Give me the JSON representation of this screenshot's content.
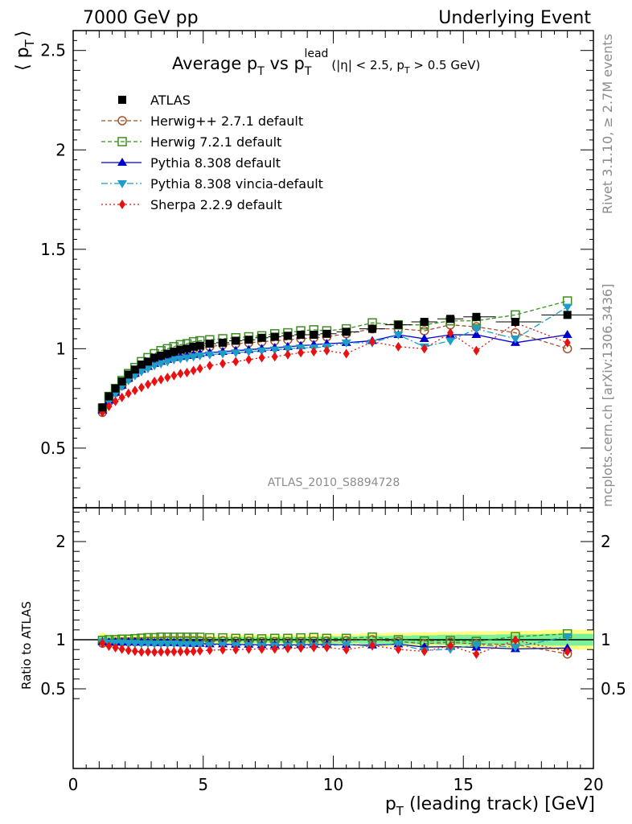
{
  "header": {
    "left": "7000 GeV pp",
    "right": "Underlying Event"
  },
  "side_text": {
    "rivet": "Rivet 3.1.10, ≥ 2.7M events",
    "mcplots": "mcplots.cern.ch [arXiv:1306.3436]"
  },
  "colors": {
    "atlas": "#000000",
    "herwigpp": "#a0522d",
    "herwig7": "#3a8f1f",
    "pythia_default": "#0000cc",
    "pythia_vincia": "#1e9ec7",
    "sherpa": "#e81010",
    "band_inner": "#7cf09a",
    "band_outer": "#ffff80"
  },
  "chart_data": [
    {
      "type": "line",
      "title": "Average p_T vs p_T^lead (|η| < 2.5, p_T > 0.5 GeV)",
      "title_parts": {
        "main": "Average p",
        "sub1": "T",
        "vs": " vs p",
        "sup": "lead",
        "sub2": "T",
        "cut1": "(|η| < 2.5, p",
        "cut_sub": "T",
        "cut2": " > 0.5 GeV)"
      },
      "ylabel": "⟨ p_T ⟩",
      "ylabel_parts": {
        "open": "⟨ p",
        "sub": "T",
        "close": "⟩"
      },
      "watermark": "ATLAS_2010_S8894728",
      "xlim": [
        0,
        20
      ],
      "ylim": [
        0.2,
        2.6
      ],
      "yticks": [
        "0.5",
        "1",
        "1.5",
        "2",
        "2.5"
      ],
      "legend_position": "top-left",
      "legend": [
        "ATLAS",
        "Herwig++ 2.7.1 default",
        "Herwig 7.2.1 default",
        "Pythia 8.308 default",
        "Pythia 8.308 vincia-default",
        "Sherpa 2.2.9 default"
      ],
      "x": [
        1.125,
        1.375,
        1.625,
        1.875,
        2.125,
        2.375,
        2.625,
        2.875,
        3.125,
        3.375,
        3.625,
        3.875,
        4.125,
        4.375,
        4.625,
        4.875,
        5.25,
        5.75,
        6.25,
        6.75,
        7.25,
        7.75,
        8.25,
        8.75,
        9.25,
        9.75,
        10.5,
        11.5,
        12.5,
        13.5,
        14.5,
        15.5,
        17.0,
        19.0
      ],
      "series": [
        {
          "name": "ATLAS",
          "style": "data",
          "values": [
            0.705,
            0.76,
            0.8,
            0.835,
            0.87,
            0.895,
            0.92,
            0.935,
            0.955,
            0.965,
            0.975,
            0.985,
            0.995,
            1.0,
            1.01,
            1.015,
            1.025,
            1.03,
            1.04,
            1.045,
            1.055,
            1.06,
            1.065,
            1.07,
            1.07,
            1.075,
            1.085,
            1.1,
            1.12,
            1.135,
            1.15,
            1.16,
            1.135,
            1.17
          ]
        },
        {
          "name": "Herwig++ 2.7.1 default",
          "style": "dashed-circle",
          "values": [
            0.68,
            0.735,
            0.78,
            0.815,
            0.85,
            0.875,
            0.9,
            0.92,
            0.94,
            0.95,
            0.965,
            0.975,
            0.985,
            0.99,
            1.0,
            1.005,
            1.01,
            1.02,
            1.025,
            1.03,
            1.035,
            1.04,
            1.045,
            1.05,
            1.055,
            1.06,
            1.075,
            1.1,
            1.1,
            1.09,
            1.12,
            1.11,
            1.08,
            1.0
          ]
        },
        {
          "name": "Herwig 7.2.1 default",
          "style": "dashed-square",
          "values": [
            0.7,
            0.76,
            0.8,
            0.84,
            0.875,
            0.905,
            0.935,
            0.955,
            0.975,
            0.99,
            1.0,
            1.01,
            1.02,
            1.025,
            1.035,
            1.04,
            1.045,
            1.05,
            1.055,
            1.06,
            1.065,
            1.075,
            1.08,
            1.09,
            1.095,
            1.09,
            1.1,
            1.13,
            1.12,
            1.12,
            1.14,
            1.14,
            1.17,
            1.24
          ]
        },
        {
          "name": "Pythia 8.308 default",
          "style": "solid-triangle",
          "values": [
            0.69,
            0.74,
            0.78,
            0.815,
            0.85,
            0.875,
            0.895,
            0.91,
            0.925,
            0.935,
            0.945,
            0.955,
            0.96,
            0.965,
            0.97,
            0.975,
            0.98,
            0.985,
            0.99,
            0.995,
            1.0,
            1.005,
            1.01,
            1.015,
            1.02,
            1.025,
            1.03,
            1.04,
            1.07,
            1.05,
            1.07,
            1.07,
            1.03,
            1.07
          ]
        },
        {
          "name": "Pythia 8.308 vincia-default",
          "style": "dashdot-triangle-down",
          "values": [
            0.69,
            0.735,
            0.775,
            0.81,
            0.84,
            0.865,
            0.885,
            0.9,
            0.915,
            0.925,
            0.935,
            0.945,
            0.95,
            0.955,
            0.96,
            0.965,
            0.97,
            0.975,
            0.98,
            0.985,
            0.99,
            0.995,
            1.0,
            1.005,
            1.005,
            1.01,
            1.03,
            1.03,
            1.07,
            1.01,
            1.04,
            1.1,
            1.05,
            1.21
          ]
        },
        {
          "name": "Sherpa 2.2.9 default",
          "style": "dotted-diamond",
          "values": [
            0.68,
            0.71,
            0.735,
            0.755,
            0.775,
            0.79,
            0.805,
            0.82,
            0.835,
            0.845,
            0.855,
            0.865,
            0.875,
            0.88,
            0.89,
            0.9,
            0.915,
            0.925,
            0.935,
            0.945,
            0.955,
            0.96,
            0.97,
            0.98,
            0.985,
            0.99,
            0.975,
            1.035,
            1.01,
            1.0,
            1.08,
            0.99,
            1.13,
            1.03
          ]
        }
      ]
    },
    {
      "type": "line",
      "ylabel": "Ratio to ATLAS",
      "xlabel": "p_T (leading track) [GeV]",
      "xlabel_parts": {
        "main": "p",
        "sub": "T",
        "rest": " (leading track) [GeV]"
      },
      "xlim": [
        0,
        20
      ],
      "ylim": [
        0.35,
        2.35
      ],
      "xticks": [
        "0",
        "5",
        "10",
        "15",
        "20"
      ],
      "yticks": [
        "0.5",
        "1",
        "2"
      ],
      "x": [
        1.125,
        1.375,
        1.625,
        1.875,
        2.125,
        2.375,
        2.625,
        2.875,
        3.125,
        3.375,
        3.625,
        3.875,
        4.125,
        4.375,
        4.625,
        4.875,
        5.25,
        5.75,
        6.25,
        6.75,
        7.25,
        7.75,
        8.25,
        8.75,
        9.25,
        9.75,
        10.5,
        11.5,
        12.5,
        13.5,
        14.5,
        15.5,
        17.0,
        19.0
      ],
      "band": {
        "inner": [
          0.03,
          0.03,
          0.025,
          0.025,
          0.025,
          0.025,
          0.025,
          0.025,
          0.025,
          0.025,
          0.025,
          0.025,
          0.025,
          0.025,
          0.025,
          0.025,
          0.025,
          0.025,
          0.03,
          0.03,
          0.03,
          0.03,
          0.03,
          0.03,
          0.03,
          0.035,
          0.035,
          0.04,
          0.04,
          0.045,
          0.05,
          0.05,
          0.055,
          0.06
        ],
        "outer": [
          0.07,
          0.05,
          0.045,
          0.045,
          0.045,
          0.045,
          0.045,
          0.045,
          0.045,
          0.045,
          0.045,
          0.045,
          0.045,
          0.045,
          0.045,
          0.045,
          0.045,
          0.045,
          0.05,
          0.05,
          0.05,
          0.05,
          0.05,
          0.05,
          0.055,
          0.06,
          0.06,
          0.065,
          0.07,
          0.075,
          0.08,
          0.085,
          0.09,
          0.1
        ]
      },
      "series": [
        {
          "name": "Herwig++ 2.7.1 default",
          "values": [
            0.965,
            0.967,
            0.975,
            0.976,
            0.977,
            0.978,
            0.978,
            0.984,
            0.984,
            0.984,
            0.99,
            0.99,
            0.99,
            0.99,
            0.99,
            0.99,
            0.985,
            0.99,
            0.985,
            0.986,
            0.981,
            0.981,
            0.981,
            0.981,
            0.986,
            0.986,
            0.991,
            1.0,
            0.982,
            0.96,
            0.974,
            0.957,
            0.952,
            0.855
          ]
        },
        {
          "name": "Herwig 7.2.1 default",
          "values": [
            0.993,
            1.0,
            1.0,
            1.006,
            1.006,
            1.011,
            1.016,
            1.021,
            1.021,
            1.026,
            1.026,
            1.025,
            1.025,
            1.025,
            1.025,
            1.025,
            1.02,
            1.019,
            1.014,
            1.014,
            1.009,
            1.014,
            1.014,
            1.019,
            1.023,
            1.014,
            1.014,
            1.027,
            1.0,
            0.987,
            0.991,
            0.983,
            1.031,
            1.06
          ]
        },
        {
          "name": "Pythia 8.308 default",
          "values": [
            0.979,
            0.974,
            0.975,
            0.976,
            0.977,
            0.978,
            0.973,
            0.973,
            0.969,
            0.969,
            0.969,
            0.97,
            0.965,
            0.965,
            0.96,
            0.961,
            0.956,
            0.956,
            0.952,
            0.952,
            0.948,
            0.948,
            0.948,
            0.949,
            0.953,
            0.953,
            0.949,
            0.945,
            0.955,
            0.925,
            0.93,
            0.922,
            0.907,
            0.915
          ]
        },
        {
          "name": "Pythia 8.308 vincia-default",
          "values": [
            0.979,
            0.967,
            0.969,
            0.97,
            0.966,
            0.966,
            0.962,
            0.963,
            0.958,
            0.959,
            0.959,
            0.959,
            0.955,
            0.955,
            0.95,
            0.951,
            0.946,
            0.947,
            0.942,
            0.943,
            0.938,
            0.939,
            0.939,
            0.939,
            0.939,
            0.94,
            0.949,
            0.936,
            0.955,
            0.89,
            0.904,
            0.948,
            0.925,
            1.034
          ]
        },
        {
          "name": "Sherpa 2.2.9 default",
          "values": [
            0.965,
            0.934,
            0.919,
            0.904,
            0.891,
            0.883,
            0.875,
            0.877,
            0.874,
            0.876,
            0.877,
            0.878,
            0.879,
            0.88,
            0.881,
            0.887,
            0.893,
            0.898,
            0.899,
            0.904,
            0.905,
            0.906,
            0.911,
            0.916,
            0.921,
            0.921,
            0.899,
            0.941,
            0.902,
            0.881,
            0.939,
            0.853,
            0.996,
            0.88
          ]
        }
      ]
    }
  ]
}
